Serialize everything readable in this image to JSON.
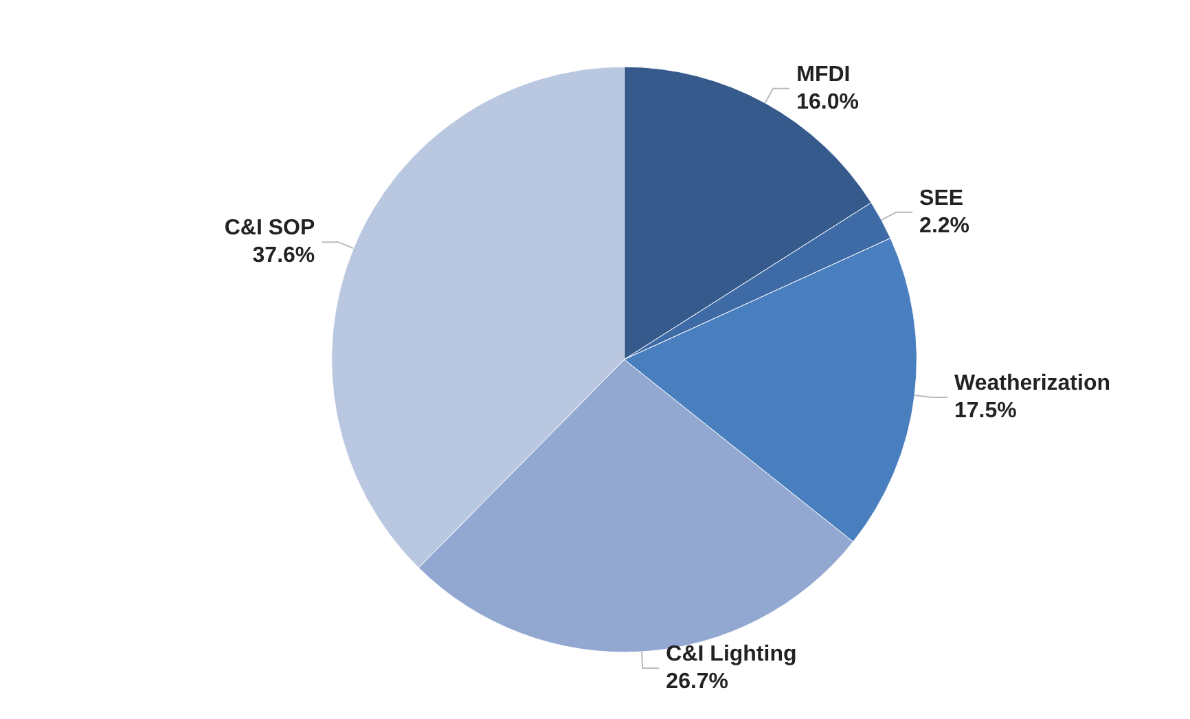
{
  "chart_data": {
    "type": "pie",
    "categories": [
      "MFDI",
      "SEE",
      "Weatherization",
      "C&I Lighting",
      "C&I SOP"
    ],
    "values": [
      16.0,
      2.2,
      17.5,
      26.7,
      37.6
    ],
    "value_labels": [
      "16.0%",
      "2.2%",
      "17.5%",
      "26.7%",
      "37.6%"
    ],
    "colors": [
      "#375a8c",
      "#3e6aa6",
      "#4a7fbf",
      "#93a8d1",
      "#b9c7e0"
    ],
    "legend": false
  }
}
